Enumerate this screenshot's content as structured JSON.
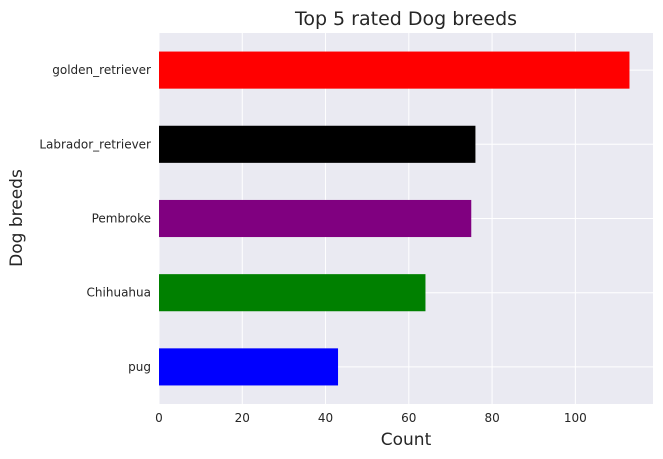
{
  "chart_data": {
    "type": "bar",
    "orientation": "horizontal",
    "title": "Top 5 rated Dog breeds",
    "xlabel": "Count",
    "ylabel": "Dog breeds",
    "categories": [
      "golden_retriever",
      "Labrador_retriever",
      "Pembroke",
      "Chihuahua",
      "pug"
    ],
    "values": [
      113,
      76,
      75,
      64,
      43
    ],
    "colors": [
      "#ff0000",
      "#000000",
      "#800080",
      "#008000",
      "#0000ff"
    ],
    "xticks": [
      "0",
      "20",
      "40",
      "60",
      "80",
      "100"
    ],
    "xlim": [
      0,
      118.65
    ],
    "grid": true,
    "background": "#eaeaf2",
    "legend": "none"
  }
}
